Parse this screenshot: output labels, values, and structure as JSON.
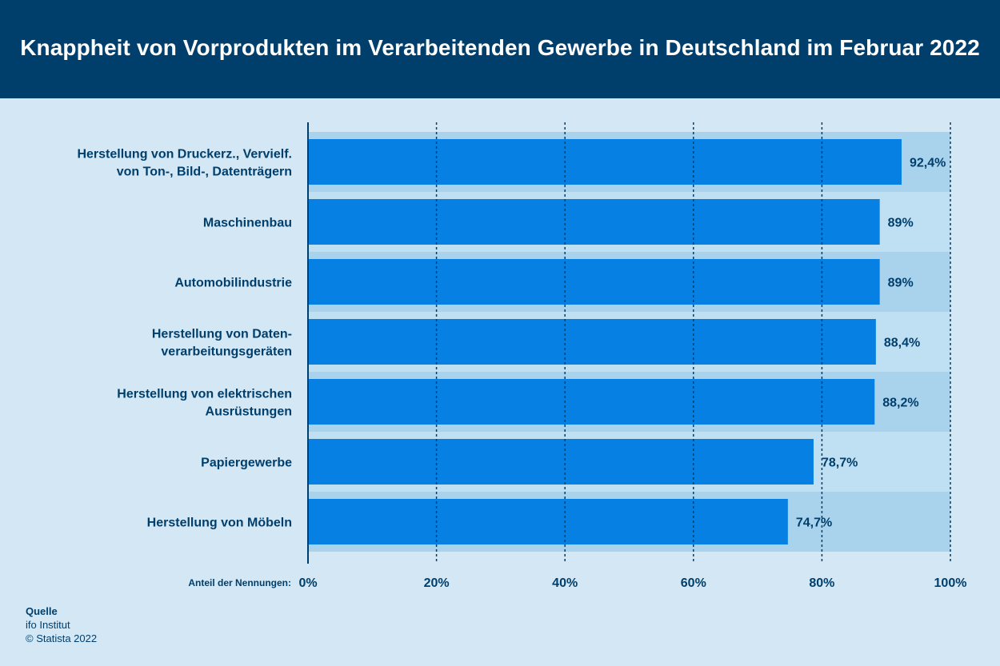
{
  "header": {
    "title": "Knappheit von Vorprodukten im Verarbeitenden Gewerbe in Deutschland im Februar 2022"
  },
  "colors": {
    "header_bg": "#003f6c",
    "page_bg": "#d3e7f5",
    "bar": "#0680e2",
    "band_dark": "#a9d3ed",
    "band_light": "#bfdff2",
    "text": "#003f6c"
  },
  "chart_data": {
    "type": "bar",
    "orientation": "horizontal",
    "title": "Knappheit von Vorprodukten im Verarbeitenden Gewerbe in Deutschland im Februar 2022",
    "xlabel": "Anteil der Nennungen:",
    "xlim": [
      0,
      100
    ],
    "xticks": [
      "0%",
      "20%",
      "40%",
      "60%",
      "80%",
      "100%"
    ],
    "grid": "vertical dashed",
    "categories": [
      [
        "Herstellung von Druckerz., Vervielf.",
        "von Ton-, Bild-, Datenträgern"
      ],
      [
        "Maschinenbau"
      ],
      [
        "Automobilindustrie"
      ],
      [
        "Herstellung von Daten-",
        "verarbeitungsgeräten"
      ],
      [
        "Herstellung von elektrischen",
        "Ausrüstungen"
      ],
      [
        "Papiergewerbe"
      ],
      [
        "Herstellung von Möbeln"
      ]
    ],
    "values": [
      92.4,
      89,
      89,
      88.4,
      88.2,
      78.7,
      74.7
    ],
    "value_labels": [
      "92,4%",
      "89%",
      "89%",
      "88,4%",
      "88,2%",
      "78,7%",
      "74,7%"
    ]
  },
  "source": {
    "heading": "Quelle",
    "line1": "ifo Institut",
    "line2": "© Statista 2022"
  }
}
